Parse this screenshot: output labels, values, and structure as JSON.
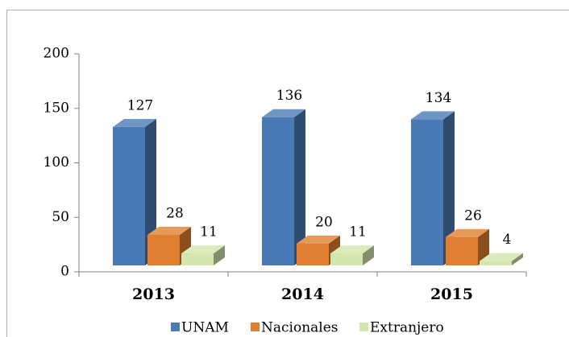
{
  "chart_data": {
    "type": "bar3d",
    "categories": [
      "2013",
      "2014",
      "2015"
    ],
    "series": [
      {
        "name": "UNAM",
        "color": "#4a7ab5",
        "values": [
          127,
          136,
          134
        ]
      },
      {
        "name": "Nacionales",
        "color": "#e07f2f",
        "values": [
          28,
          20,
          26
        ]
      },
      {
        "name": "Extranjero",
        "color": "#d3e6ad",
        "values": [
          11,
          11,
          4
        ]
      }
    ],
    "ylim": [
      0,
      200
    ],
    "yticks": [
      0,
      50,
      100,
      150,
      200
    ],
    "legend": "bottom"
  }
}
